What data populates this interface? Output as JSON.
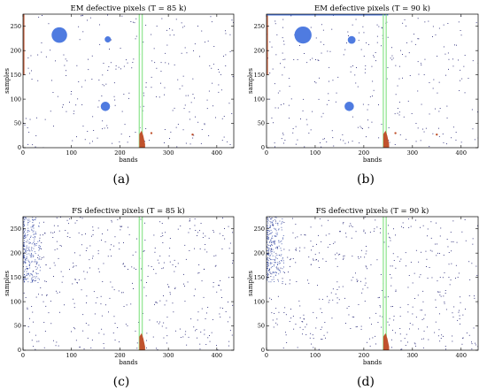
{
  "figure": {
    "panel_labels": [
      "(a)",
      "(b)",
      "(c)",
      "(d)"
    ]
  },
  "chart_data": [
    {
      "type": "scatter",
      "title": "EM defective pixels (T = 85 k)",
      "xlabel": "bands",
      "ylabel": "samples",
      "xlim": [
        0,
        435
      ],
      "ylim": [
        0,
        275
      ],
      "x_ticks": [
        0,
        100,
        200,
        300,
        400
      ],
      "y_ticks": [
        0,
        50,
        100,
        150,
        200,
        250
      ],
      "grid": false,
      "colors": {
        "points": "#1a1a6e",
        "clusters": "#4f7be0",
        "column_band": "#9be89b",
        "edge": "#c0522d"
      },
      "features": {
        "green_columns": [
          240,
          246
        ],
        "red_column_bottom": {
          "x": [
            240,
            252
          ],
          "y": [
            0,
            35
          ]
        },
        "red_left_edge": {
          "x": [
            0,
            3
          ],
          "y": [
            150,
            275
          ]
        },
        "blue_clusters": [
          {
            "x": 75,
            "y": 232,
            "r": 10
          },
          {
            "x": 175,
            "y": 223,
            "r": 4
          },
          {
            "x": 170,
            "y": 85,
            "r": 6
          }
        ],
        "red_spots": [
          {
            "x": 265,
            "y": 30
          },
          {
            "x": 350,
            "y": 27
          }
        ],
        "top_edge_band": false
      },
      "scatter_density": 260,
      "seed": 11
    },
    {
      "type": "scatter",
      "title": "EM defective pixels (T = 90 k)",
      "xlabel": "bands",
      "ylabel": "samples",
      "xlim": [
        0,
        435
      ],
      "ylim": [
        0,
        275
      ],
      "x_ticks": [
        0,
        100,
        200,
        300,
        400
      ],
      "y_ticks": [
        0,
        50,
        100,
        150,
        200,
        250
      ],
      "grid": false,
      "colors": {
        "points": "#1a1a6e",
        "clusters": "#4f7be0",
        "column_band": "#9be89b",
        "edge": "#c0522d"
      },
      "features": {
        "green_columns": [
          240,
          246
        ],
        "red_column_bottom": {
          "x": [
            240,
            252
          ],
          "y": [
            0,
            35
          ]
        },
        "red_left_edge": {
          "x": [
            0,
            3
          ],
          "y": [
            150,
            275
          ]
        },
        "blue_clusters": [
          {
            "x": 75,
            "y": 232,
            "r": 11
          },
          {
            "x": 175,
            "y": 222,
            "r": 5
          },
          {
            "x": 170,
            "y": 85,
            "r": 6
          }
        ],
        "red_spots": [
          {
            "x": 265,
            "y": 30
          },
          {
            "x": 350,
            "y": 27
          }
        ],
        "top_edge_band": true
      },
      "scatter_density": 300,
      "seed": 23
    },
    {
      "type": "scatter",
      "title": "FS defective pixels (T = 85 k)",
      "xlabel": "bands",
      "ylabel": "samples",
      "xlim": [
        0,
        435
      ],
      "ylim": [
        0,
        275
      ],
      "x_ticks": [
        0,
        100,
        200,
        300,
        400
      ],
      "y_ticks": [
        0,
        50,
        100,
        150,
        200,
        250
      ],
      "grid": false,
      "colors": {
        "points": "#1a1a6e",
        "clusters": "#4f7be0",
        "column_band": "#9be89b",
        "edge": "#c0522d"
      },
      "features": {
        "green_columns": [
          240,
          246
        ],
        "red_column_bottom": {
          "x": [
            240,
            252
          ],
          "y": [
            0,
            35
          ]
        },
        "red_left_edge": null,
        "blue_clusters": [],
        "left_dense_region": {
          "x": [
            0,
            35
          ],
          "y": [
            140,
            275
          ]
        },
        "red_spots": [],
        "top_edge_band": false
      },
      "scatter_density": 420,
      "seed": 37
    },
    {
      "type": "scatter",
      "title": "FS defective pixels (T = 90 k)",
      "xlabel": "bands",
      "ylabel": "samples",
      "xlim": [
        0,
        435
      ],
      "ylim": [
        0,
        275
      ],
      "x_ticks": [
        0,
        100,
        200,
        300,
        400
      ],
      "y_ticks": [
        0,
        50,
        100,
        150,
        200,
        250
      ],
      "grid": false,
      "colors": {
        "points": "#1a1a6e",
        "clusters": "#4f7be0",
        "column_band": "#9be89b",
        "edge": "#c0522d"
      },
      "features": {
        "green_columns": [
          240,
          246
        ],
        "red_column_bottom": {
          "x": [
            240,
            252
          ],
          "y": [
            0,
            35
          ]
        },
        "red_left_edge": null,
        "blue_clusters": [],
        "left_dense_region": {
          "x": [
            0,
            35
          ],
          "y": [
            140,
            275
          ]
        },
        "red_spots": [],
        "top_edge_band": false
      },
      "scatter_density": 460,
      "seed": 53
    }
  ]
}
